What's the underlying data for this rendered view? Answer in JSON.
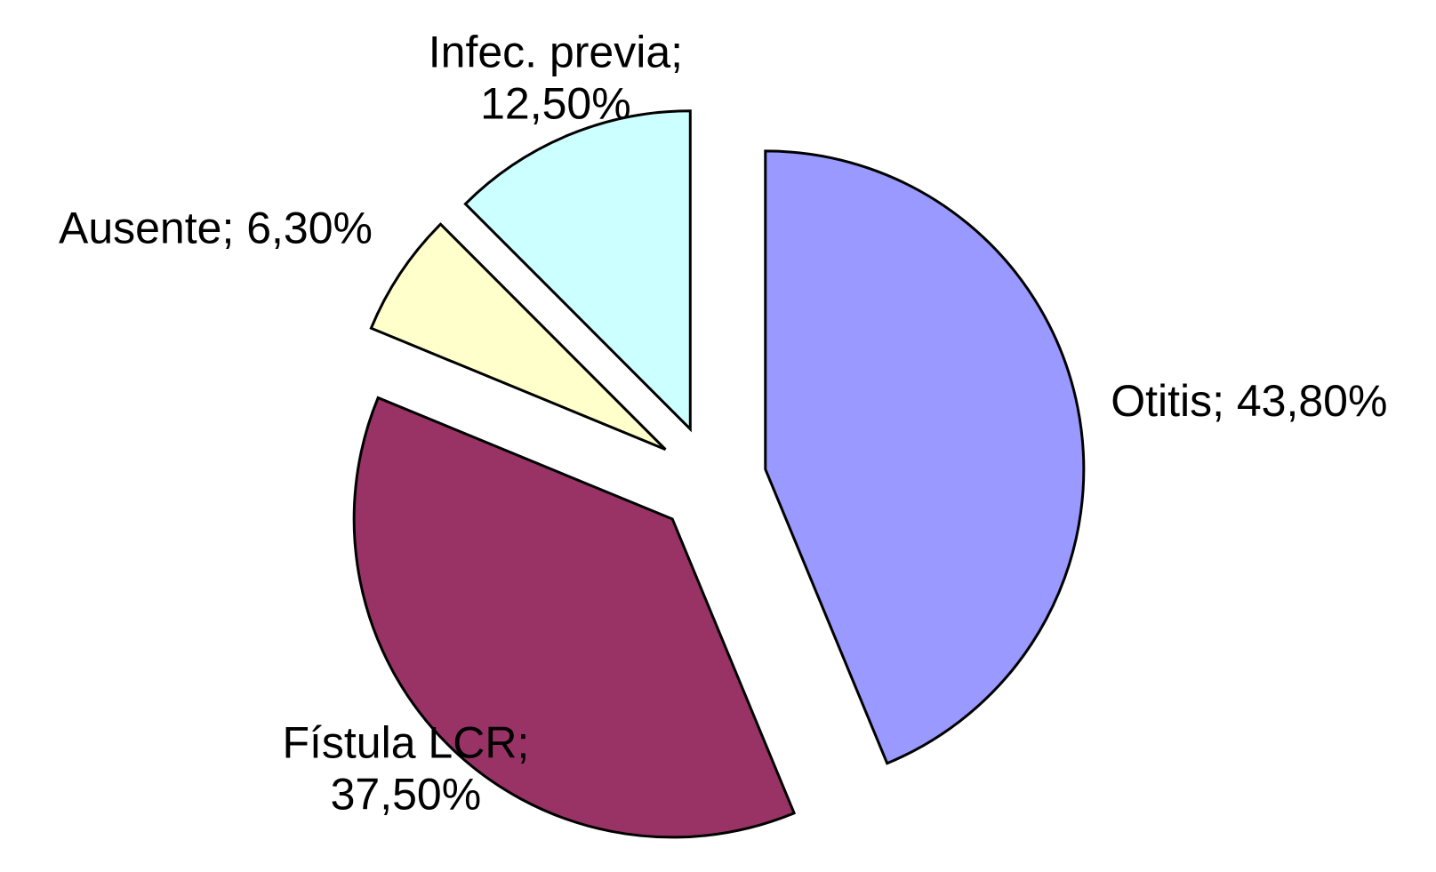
{
  "chart_data": {
    "type": "pie",
    "title": "",
    "categories": [
      "Otitis",
      "Fístula LCR",
      "Ausente",
      "Infec. previa"
    ],
    "values": [
      43.8,
      37.5,
      6.3,
      12.5
    ],
    "series": [
      {
        "values": [
          43.8,
          37.5,
          6.3,
          12.5
        ]
      }
    ],
    "slices": [
      {
        "label": "Otitis",
        "value": 43.8,
        "label_lines": [
          "Otitis; 43,80%"
        ],
        "color": "#9999ff"
      },
      {
        "label": "Fístula LCR",
        "value": 37.5,
        "label_lines": [
          "Fístula LCR;",
          "37,50%"
        ],
        "color": "#993366"
      },
      {
        "label": "Ausente",
        "value": 6.3,
        "label_lines": [
          "Ausente; 6,30%"
        ],
        "color": "#ffffcc"
      },
      {
        "label": "Infec. previa",
        "value": 12.5,
        "label_lines": [
          "Infec. previa;",
          "12,50%"
        ],
        "color": "#ccffff"
      }
    ],
    "exploded": true,
    "start_angle": "12 o'clock",
    "direction": "clockwise",
    "legend": "none",
    "outline_color": "#000000"
  }
}
